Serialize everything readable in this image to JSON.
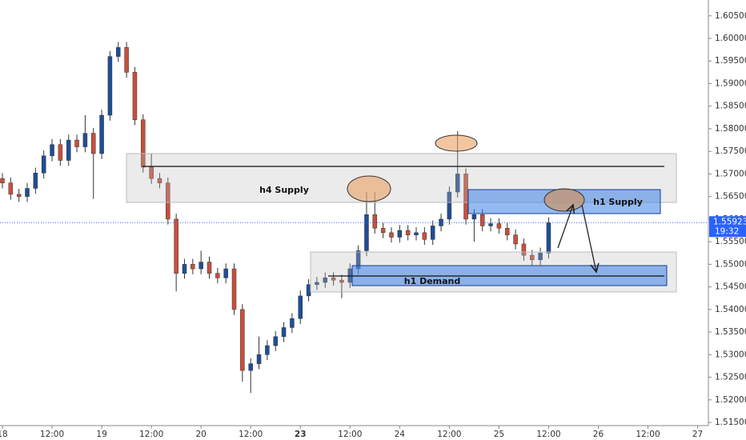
{
  "chart_data": {
    "type": "candlestick",
    "x": [
      0,
      2,
      4,
      6,
      8,
      10,
      12,
      14,
      16,
      18,
      20,
      22,
      24,
      26,
      28,
      30,
      32,
      34,
      36,
      38,
      40,
      42,
      44,
      46,
      48,
      50,
      52,
      54,
      56,
      58,
      60,
      62,
      64,
      66,
      68,
      70,
      72,
      74,
      76,
      78,
      80,
      82,
      84,
      86,
      88,
      90,
      92,
      94,
      96,
      98,
      100,
      102,
      104,
      106,
      108,
      110,
      112,
      114,
      116,
      118,
      120,
      122,
      124,
      126,
      128,
      130,
      132
    ],
    "open": [
      1.569,
      1.568,
      1.5655,
      1.565,
      1.5668,
      1.5702,
      1.574,
      1.5765,
      1.573,
      1.5775,
      1.576,
      1.579,
      1.5745,
      1.583,
      1.596,
      1.598,
      1.5925,
      1.582,
      1.5715,
      1.569,
      1.568,
      1.56,
      1.548,
      1.55,
      1.549,
      1.5505,
      1.548,
      1.547,
      1.549,
      1.54,
      1.5265,
      1.528,
      1.53,
      1.532,
      1.534,
      1.536,
      1.538,
      1.543,
      1.5455,
      1.546,
      1.547,
      1.5465,
      1.546,
      1.549,
      1.553,
      1.561,
      1.558,
      1.557,
      1.556,
      1.5575,
      1.5565,
      1.557,
      1.5555,
      1.5585,
      1.56,
      1.566,
      1.57,
      1.56,
      1.561,
      1.5585,
      1.559,
      1.558,
      1.5565,
      1.5545,
      1.552,
      1.551,
      1.5525
    ],
    "high": [
      1.5702,
      1.5692,
      1.5667,
      1.568,
      1.5714,
      1.5752,
      1.5777,
      1.5777,
      1.5787,
      1.5787,
      1.583,
      1.5802,
      1.5842,
      1.5972,
      1.5992,
      1.5992,
      1.5937,
      1.5832,
      1.5745,
      1.5702,
      1.5692,
      1.5612,
      1.5512,
      1.5512,
      1.553,
      1.5517,
      1.5492,
      1.5502,
      1.5502,
      1.5412,
      1.5292,
      1.534,
      1.5332,
      1.5352,
      1.5372,
      1.5392,
      1.5442,
      1.5467,
      1.5472,
      1.5482,
      1.5482,
      1.5477,
      1.5502,
      1.5542,
      1.566,
      1.566,
      1.5592,
      1.5582,
      1.5587,
      1.5587,
      1.5582,
      1.5582,
      1.5597,
      1.5612,
      1.5672,
      1.5795,
      1.5712,
      1.5622,
      1.5622,
      1.5602,
      1.5602,
      1.5592,
      1.5577,
      1.5557,
      1.5532,
      1.5537,
      1.5604
    ],
    "low": [
      1.5668,
      1.5643,
      1.5638,
      1.5638,
      1.5656,
      1.569,
      1.5728,
      1.5718,
      1.5718,
      1.5748,
      1.5748,
      1.5645,
      1.5733,
      1.5818,
      1.5948,
      1.5913,
      1.5808,
      1.5703,
      1.5678,
      1.5668,
      1.5588,
      1.544,
      1.5468,
      1.5478,
      1.5478,
      1.5468,
      1.5458,
      1.5458,
      1.5388,
      1.524,
      1.5215,
      1.5268,
      1.5288,
      1.5308,
      1.5328,
      1.5348,
      1.5368,
      1.5418,
      1.5443,
      1.5448,
      1.5453,
      1.5425,
      1.5448,
      1.5478,
      1.5518,
      1.5568,
      1.5558,
      1.5548,
      1.5548,
      1.5553,
      1.5553,
      1.5543,
      1.5543,
      1.5573,
      1.5588,
      1.5648,
      1.5588,
      1.555,
      1.5573,
      1.5573,
      1.5568,
      1.5553,
      1.5533,
      1.5508,
      1.5498,
      1.5498,
      1.5513
    ],
    "close": [
      1.568,
      1.5655,
      1.565,
      1.5668,
      1.5702,
      1.574,
      1.5765,
      1.573,
      1.5775,
      1.576,
      1.579,
      1.5745,
      1.583,
      1.596,
      1.598,
      1.5925,
      1.582,
      1.5715,
      1.569,
      1.568,
      1.56,
      1.548,
      1.55,
      1.549,
      1.5505,
      1.548,
      1.547,
      1.549,
      1.54,
      1.5265,
      1.528,
      1.53,
      1.532,
      1.534,
      1.536,
      1.538,
      1.543,
      1.5455,
      1.546,
      1.547,
      1.5465,
      1.546,
      1.549,
      1.553,
      1.561,
      1.558,
      1.557,
      1.556,
      1.5575,
      1.5565,
      1.557,
      1.5555,
      1.5585,
      1.56,
      1.566,
      1.57,
      1.56,
      1.561,
      1.5585,
      1.559,
      1.558,
      1.5565,
      1.5545,
      1.552,
      1.551,
      1.5525,
      1.5592
    ],
    "up_color": "#1f4e96",
    "down_color": "#c8503c",
    "xlim": [
      -0.58,
      170.6
    ],
    "xticks": [
      {
        "value": 0,
        "label": "18"
      },
      {
        "value": 12,
        "label": "12:00"
      },
      {
        "value": 24,
        "label": "19"
      },
      {
        "value": 36,
        "label": "12:00"
      },
      {
        "value": 48,
        "label": "20"
      },
      {
        "value": 60,
        "label": "12:00"
      },
      {
        "value": 72,
        "label": "23"
      },
      {
        "value": 84,
        "label": "12:00"
      },
      {
        "value": 96,
        "label": "24"
      },
      {
        "value": 108,
        "label": "12:00"
      },
      {
        "value": 120,
        "label": "25"
      },
      {
        "value": 132,
        "label": "12:00"
      },
      {
        "value": 144,
        "label": "26"
      },
      {
        "value": 156,
        "label": "12:00"
      },
      {
        "value": 168,
        "label": "27"
      }
    ],
    "ylim": [
      1.5143,
      1.6085
    ],
    "yticks": [
      {
        "value": 1.515,
        "label": "1.51500"
      },
      {
        "value": 1.52,
        "label": "1.52000"
      },
      {
        "value": 1.525,
        "label": "1.52500"
      },
      {
        "value": 1.53,
        "label": "1.53000"
      },
      {
        "value": 1.535,
        "label": "1.53500"
      },
      {
        "value": 1.54,
        "label": "1.54000"
      },
      {
        "value": 1.545,
        "label": "1.54500"
      },
      {
        "value": 1.55,
        "label": "1.55000"
      },
      {
        "value": 1.555,
        "label": "1.55500"
      },
      {
        "value": 1.56,
        "label": "1.56000"
      },
      {
        "value": 1.565,
        "label": "1.56500"
      },
      {
        "value": 1.57,
        "label": "1.57000"
      },
      {
        "value": 1.575,
        "label": "1.57500"
      },
      {
        "value": 1.58,
        "label": "1.58000"
      },
      {
        "value": 1.585,
        "label": "1.58500"
      },
      {
        "value": 1.59,
        "label": "1.59000"
      },
      {
        "value": 1.595,
        "label": "1.59500"
      },
      {
        "value": 1.6,
        "label": "1.60000"
      },
      {
        "value": 1.605,
        "label": "1.60500"
      }
    ],
    "last_price": 1.55923,
    "last_price_color": "#2962ff",
    "countdown": "19:32",
    "annotations": {
      "h4_supply": "h4 Supply",
      "h1_supply": "h1 Supply",
      "h1_demand": "h1 Demand"
    }
  }
}
